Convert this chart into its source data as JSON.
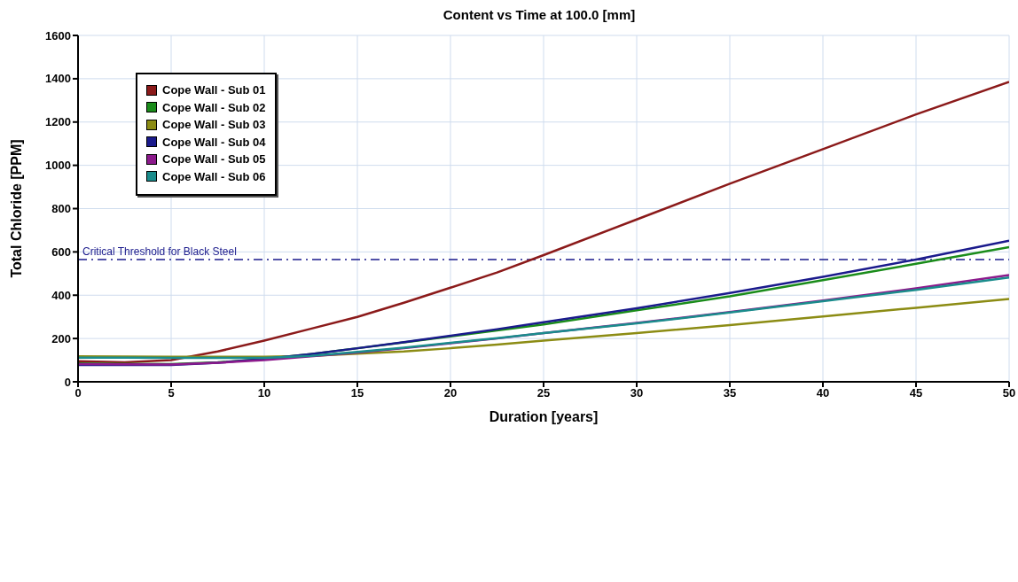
{
  "chart_data": {
    "type": "line",
    "title": "Content vs Time at 100.0 [mm]",
    "xlabel": "Duration [years]",
    "ylabel": "Total Chloride  [PPM]",
    "x": [
      0,
      2.5,
      5,
      7.5,
      10,
      12.5,
      15,
      17.5,
      20,
      22.5,
      25,
      30,
      35,
      40,
      45,
      50
    ],
    "series": [
      {
        "name": "Cope Wall - Sub 01",
        "color": "#8b1a1a",
        "values": [
          95,
          90,
          100,
          140,
          190,
          245,
          300,
          365,
          435,
          505,
          585,
          750,
          915,
          1075,
          1235,
          1385
        ]
      },
      {
        "name": "Cope Wall - Sub 02",
        "color": "#1a8c1a",
        "values": [
          85,
          83,
          82,
          90,
          105,
          128,
          155,
          182,
          210,
          237,
          265,
          330,
          395,
          470,
          545,
          622
        ]
      },
      {
        "name": "Cope Wall - Sub 03",
        "color": "#8c8c14",
        "values": [
          118,
          117,
          116,
          116,
          116,
          120,
          130,
          140,
          155,
          172,
          190,
          225,
          262,
          302,
          342,
          383
        ]
      },
      {
        "name": "Cope Wall - Sub 04",
        "color": "#1a1a8c",
        "values": [
          78,
          78,
          78,
          88,
          105,
          128,
          155,
          183,
          213,
          243,
          275,
          340,
          410,
          485,
          565,
          652
        ]
      },
      {
        "name": "Cope Wall - Sub 05",
        "color": "#8c1a8c",
        "values": [
          82,
          81,
          80,
          88,
          100,
          118,
          135,
          155,
          178,
          200,
          225,
          272,
          322,
          375,
          432,
          493
        ]
      },
      {
        "name": "Cope Wall - Sub 06",
        "color": "#1a8c8c",
        "values": [
          112,
          111,
          110,
          110,
          110,
          120,
          138,
          158,
          180,
          202,
          225,
          270,
          320,
          372,
          425,
          482
        ]
      }
    ],
    "xlim": [
      0,
      50
    ],
    "xticks": [
      0,
      5,
      10,
      15,
      20,
      25,
      30,
      35,
      40,
      45,
      50
    ],
    "ylim": [
      0,
      1600
    ],
    "yticks": [
      0,
      200,
      400,
      600,
      800,
      1000,
      1200,
      1400,
      1600
    ],
    "ref_lines": [
      {
        "axis": "y",
        "value": 565,
        "label": "Critical Threshold for Black Steel",
        "color": "#1a1a8c",
        "line_style": "dashdot"
      }
    ],
    "grid": true,
    "legend": "top left",
    "marker": "none",
    "line_style": "solid"
  }
}
